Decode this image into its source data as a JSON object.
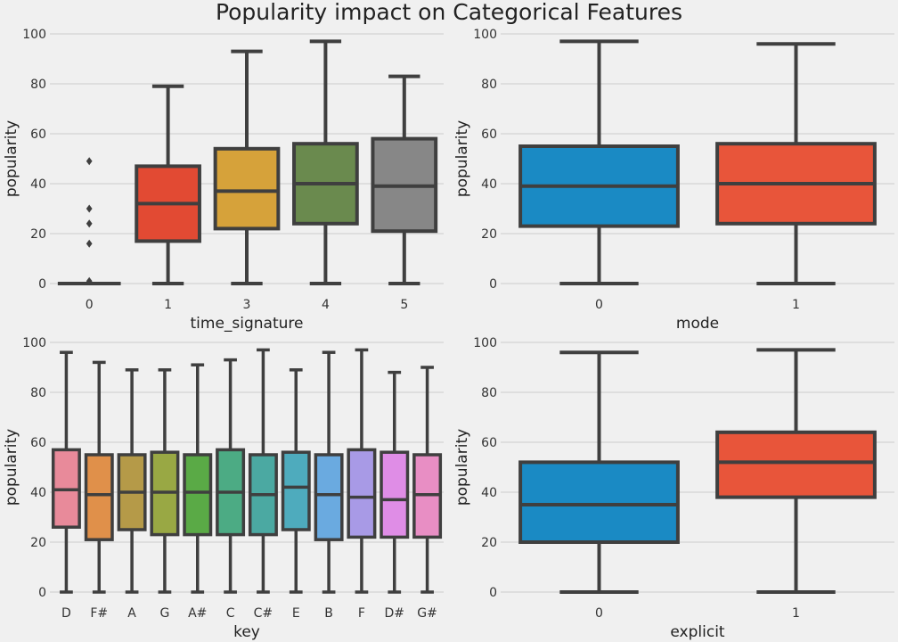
{
  "title": "Popularity impact on Categorical Features",
  "colors": {
    "background": "#f0f0f0",
    "grid": "#cbcbcb",
    "box_edge": "#3f3f3f"
  },
  "chart_data": [
    {
      "type": "box",
      "xlabel": "time_signature",
      "ylabel": "popularity",
      "ylim": [
        0,
        100
      ],
      "yticks": [
        0,
        20,
        40,
        60,
        80,
        100
      ],
      "grid": "horizontal",
      "categories": [
        "0",
        "1",
        "3",
        "4",
        "5"
      ],
      "boxes": [
        {
          "category": "0",
          "min": 0,
          "q1": 0,
          "median": 0,
          "q3": 0,
          "max": 0,
          "outliers": [
            49,
            30,
            24,
            16,
            1
          ],
          "color": "#1f77b4"
        },
        {
          "category": "1",
          "min": 0,
          "q1": 17,
          "median": 32,
          "q3": 47,
          "max": 79,
          "outliers": [],
          "color": "#e24a33"
        },
        {
          "category": "3",
          "min": 0,
          "q1": 22,
          "median": 37,
          "q3": 54,
          "max": 93,
          "outliers": [],
          "color": "#d6a23a"
        },
        {
          "category": "4",
          "min": 0,
          "q1": 24,
          "median": 40,
          "q3": 56,
          "max": 97,
          "outliers": [],
          "color": "#6a8a4e"
        },
        {
          "category": "5",
          "min": 0,
          "q1": 21,
          "median": 39,
          "q3": 58,
          "max": 83,
          "outliers": [],
          "color": "#878787"
        }
      ]
    },
    {
      "type": "box",
      "xlabel": "mode",
      "ylabel": "popularity",
      "ylim": [
        0,
        100
      ],
      "yticks": [
        0,
        20,
        40,
        60,
        80,
        100
      ],
      "grid": "horizontal",
      "categories": [
        "0",
        "1"
      ],
      "boxes": [
        {
          "category": "0",
          "min": 0,
          "q1": 23,
          "median": 39,
          "q3": 55,
          "max": 97,
          "outliers": [],
          "color": "#1a8ac4"
        },
        {
          "category": "1",
          "min": 0,
          "q1": 24,
          "median": 40,
          "q3": 56,
          "max": 96,
          "outliers": [],
          "color": "#e8553a"
        }
      ]
    },
    {
      "type": "box",
      "xlabel": "key",
      "ylabel": "popularity",
      "ylim": [
        0,
        100
      ],
      "yticks": [
        0,
        20,
        40,
        60,
        80,
        100
      ],
      "grid": "horizontal",
      "categories": [
        "D",
        "F#",
        "A",
        "G",
        "A#",
        "C",
        "C#",
        "E",
        "B",
        "F",
        "D#",
        "G#"
      ],
      "boxes": [
        {
          "category": "D",
          "min": 0,
          "q1": 26,
          "median": 41,
          "q3": 57,
          "max": 96,
          "outliers": [],
          "color": "#e88a9a"
        },
        {
          "category": "F#",
          "min": 0,
          "q1": 21,
          "median": 39,
          "q3": 55,
          "max": 92,
          "outliers": [],
          "color": "#e0904a"
        },
        {
          "category": "A",
          "min": 0,
          "q1": 25,
          "median": 40,
          "q3": 55,
          "max": 89,
          "outliers": [],
          "color": "#b59a48"
        },
        {
          "category": "G",
          "min": 0,
          "q1": 23,
          "median": 40,
          "q3": 56,
          "max": 89,
          "outliers": [],
          "color": "#99a844"
        },
        {
          "category": "A#",
          "min": 0,
          "q1": 23,
          "median": 40,
          "q3": 55,
          "max": 91,
          "outliers": [],
          "color": "#5aaa46"
        },
        {
          "category": "C",
          "min": 0,
          "q1": 23,
          "median": 40,
          "q3": 57,
          "max": 93,
          "outliers": [],
          "color": "#4cab84"
        },
        {
          "category": "C#",
          "min": 0,
          "q1": 23,
          "median": 39,
          "q3": 55,
          "max": 97,
          "outliers": [],
          "color": "#4ba9a2"
        },
        {
          "category": "E",
          "min": 0,
          "q1": 25,
          "median": 42,
          "q3": 56,
          "max": 89,
          "outliers": [],
          "color": "#4eabbd"
        },
        {
          "category": "B",
          "min": 0,
          "q1": 21,
          "median": 39,
          "q3": 55,
          "max": 96,
          "outliers": [],
          "color": "#6aaae0"
        },
        {
          "category": "F",
          "min": 0,
          "q1": 22,
          "median": 38,
          "q3": 57,
          "max": 97,
          "outliers": [],
          "color": "#a89ae6"
        },
        {
          "category": "D#",
          "min": 0,
          "q1": 22,
          "median": 37,
          "q3": 56,
          "max": 88,
          "outliers": [],
          "color": "#df8de6"
        },
        {
          "category": "G#",
          "min": 0,
          "q1": 22,
          "median": 39,
          "q3": 55,
          "max": 90,
          "outliers": [],
          "color": "#e88ec4"
        }
      ]
    },
    {
      "type": "box",
      "xlabel": "explicit",
      "ylabel": "popularity",
      "ylim": [
        0,
        100
      ],
      "yticks": [
        0,
        20,
        40,
        60,
        80,
        100
      ],
      "grid": "horizontal",
      "categories": [
        "0",
        "1"
      ],
      "boxes": [
        {
          "category": "0",
          "min": 0,
          "q1": 20,
          "median": 35,
          "q3": 52,
          "max": 96,
          "outliers": [],
          "color": "#1a8ac4"
        },
        {
          "category": "1",
          "min": 0,
          "q1": 38,
          "median": 52,
          "q3": 64,
          "max": 97,
          "outliers": [],
          "color": "#e8553a"
        }
      ]
    }
  ]
}
